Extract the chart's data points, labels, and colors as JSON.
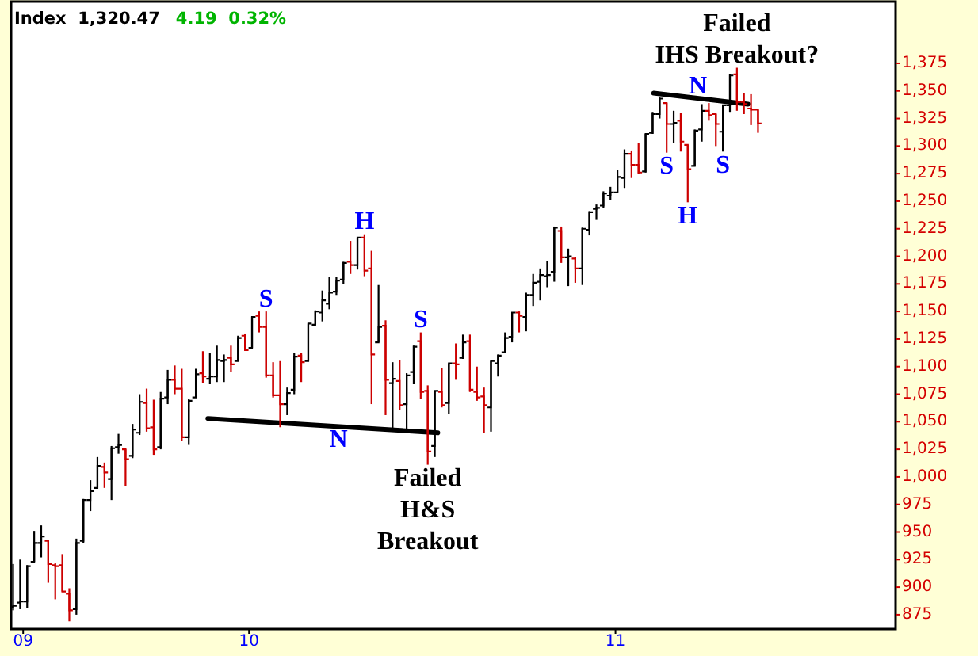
{
  "chart_data": {
    "type": "candlestick",
    "title": "Index  1,320.47",
    "subtitle": "4.19  0.32%",
    "x": [
      "2009-05-11",
      "2009-05-18",
      "2009-05-25",
      "2009-06-01",
      "2009-06-08",
      "2009-06-15",
      "2009-06-22",
      "2009-06-29",
      "2009-07-06",
      "2009-07-13",
      "2009-07-20",
      "2009-07-27",
      "2009-08-03",
      "2009-08-10",
      "2009-08-17",
      "2009-08-24",
      "2009-08-31",
      "2009-09-07",
      "2009-09-14",
      "2009-09-21",
      "2009-09-28",
      "2009-10-05",
      "2009-10-12",
      "2009-10-19",
      "2009-10-26",
      "2009-11-02",
      "2009-11-09",
      "2009-11-16",
      "2009-11-23",
      "2009-11-30",
      "2009-12-07",
      "2009-12-14",
      "2009-12-21",
      "2009-12-28",
      "2010-01-04",
      "2010-01-11",
      "2010-01-18",
      "2010-01-25",
      "2010-02-01",
      "2010-02-08",
      "2010-02-15",
      "2010-02-22",
      "2010-03-01",
      "2010-03-08",
      "2010-03-15",
      "2010-03-22",
      "2010-03-29",
      "2010-04-05",
      "2010-04-12",
      "2010-04-19",
      "2010-04-26",
      "2010-05-03",
      "2010-05-10",
      "2010-05-17",
      "2010-05-24",
      "2010-05-31",
      "2010-06-07",
      "2010-06-14",
      "2010-06-21",
      "2010-06-28",
      "2010-07-05",
      "2010-07-12",
      "2010-07-19",
      "2010-07-26",
      "2010-08-02",
      "2010-08-09",
      "2010-08-16",
      "2010-08-23",
      "2010-08-30",
      "2010-09-06",
      "2010-09-13",
      "2010-09-20",
      "2010-09-27",
      "2010-10-04",
      "2010-10-11",
      "2010-10-18",
      "2010-10-25",
      "2010-11-01",
      "2010-11-08",
      "2010-11-15",
      "2010-11-22",
      "2010-11-29",
      "2010-12-06",
      "2010-12-13",
      "2010-12-20",
      "2010-12-27",
      "2011-01-03",
      "2011-01-10",
      "2011-01-17",
      "2011-01-24",
      "2011-01-31",
      "2011-02-07",
      "2011-02-14",
      "2011-02-21",
      "2011-02-28",
      "2011-03-07",
      "2011-03-14",
      "2011-03-21",
      "2011-03-28",
      "2011-04-04",
      "2011-04-11",
      "2011-04-18",
      "2011-04-25",
      "2011-05-02",
      "2011-05-09",
      "2011-05-16",
      "2011-05-23"
    ],
    "ohlc": [
      [
        882,
        921,
        879,
        883
      ],
      [
        886,
        925,
        880,
        887
      ],
      [
        887,
        920,
        881,
        919
      ],
      [
        923,
        951,
        923,
        940
      ],
      [
        940,
        956,
        927,
        946
      ],
      [
        942,
        942,
        904,
        921
      ],
      [
        920,
        922,
        889,
        919
      ],
      [
        920,
        930,
        896,
        896
      ],
      [
        894,
        899,
        869,
        879
      ],
      [
        880,
        944,
        875,
        940
      ],
      [
        942,
        980,
        940,
        979
      ],
      [
        979,
        997,
        969,
        987
      ],
      [
        990,
        1018,
        990,
        1010
      ],
      [
        1009,
        1013,
        990,
        1004
      ],
      [
        998,
        1028,
        979,
        1026
      ],
      [
        1027,
        1039,
        1021,
        1029
      ],
      [
        1025,
        1025,
        992,
        1016
      ],
      [
        1019,
        1048,
        1017,
        1043
      ],
      [
        1040,
        1075,
        1038,
        1068
      ],
      [
        1067,
        1080,
        1041,
        1044
      ],
      [
        1045,
        1070,
        1020,
        1025
      ],
      [
        1027,
        1077,
        1025,
        1071
      ],
      [
        1072,
        1097,
        1066,
        1088
      ],
      [
        1088,
        1101,
        1075,
        1080
      ],
      [
        1080,
        1098,
        1033,
        1036
      ],
      [
        1036,
        1071,
        1029,
        1069
      ],
      [
        1072,
        1098,
        1072,
        1093
      ],
      [
        1094,
        1114,
        1085,
        1091
      ],
      [
        1089,
        1112,
        1084,
        1091
      ],
      [
        1091,
        1119,
        1086,
        1106
      ],
      [
        1105,
        1111,
        1086,
        1106
      ],
      [
        1108,
        1119,
        1095,
        1102
      ],
      [
        1105,
        1128,
        1105,
        1126
      ],
      [
        1128,
        1130,
        1115,
        1115
      ],
      [
        1117,
        1145,
        1117,
        1145
      ],
      [
        1146,
        1150,
        1131,
        1136
      ],
      [
        1136,
        1150,
        1090,
        1092
      ],
      [
        1092,
        1104,
        1072,
        1074
      ],
      [
        1074,
        1105,
        1045,
        1066
      ],
      [
        1066,
        1081,
        1056,
        1076
      ],
      [
        1079,
        1112,
        1075,
        1109
      ],
      [
        1110,
        1112,
        1086,
        1104
      ],
      [
        1105,
        1139,
        1105,
        1139
      ],
      [
        1138,
        1151,
        1138,
        1150
      ],
      [
        1149,
        1169,
        1141,
        1160
      ],
      [
        1157,
        1181,
        1152,
        1167
      ],
      [
        1168,
        1181,
        1165,
        1178
      ],
      [
        1179,
        1195,
        1175,
        1194
      ],
      [
        1195,
        1214,
        1184,
        1192
      ],
      [
        1192,
        1217,
        1188,
        1217
      ],
      [
        1217,
        1220,
        1182,
        1187
      ],
      [
        1189,
        1205,
        1066,
        1111
      ],
      [
        1122,
        1174,
        1122,
        1136
      ],
      [
        1137,
        1142,
        1056,
        1088
      ],
      [
        1085,
        1104,
        1041,
        1089
      ],
      [
        1087,
        1106,
        1061,
        1065
      ],
      [
        1066,
        1094,
        1042,
        1092
      ],
      [
        1095,
        1119,
        1084,
        1118
      ],
      [
        1123,
        1131,
        1071,
        1077
      ],
      [
        1078,
        1083,
        1011,
        1023
      ],
      [
        1028,
        1078,
        1018,
        1078
      ],
      [
        1077,
        1099,
        1063,
        1065
      ],
      [
        1067,
        1103,
        1057,
        1103
      ],
      [
        1103,
        1121,
        1088,
        1102
      ],
      [
        1108,
        1129,
        1107,
        1122
      ],
      [
        1123,
        1129,
        1077,
        1079
      ],
      [
        1077,
        1100,
        1069,
        1072
      ],
      [
        1073,
        1081,
        1040,
        1065
      ],
      [
        1063,
        1105,
        1041,
        1105
      ],
      [
        1103,
        1111,
        1091,
        1110
      ],
      [
        1113,
        1131,
        1113,
        1126
      ],
      [
        1127,
        1149,
        1122,
        1149
      ],
      [
        1149,
        1150,
        1131,
        1146
      ],
      [
        1145,
        1167,
        1132,
        1165
      ],
      [
        1165,
        1184,
        1155,
        1176
      ],
      [
        1177,
        1189,
        1160,
        1183
      ],
      [
        1182,
        1196,
        1172,
        1183
      ],
      [
        1186,
        1227,
        1177,
        1226
      ],
      [
        1223,
        1227,
        1194,
        1199
      ],
      [
        1199,
        1207,
        1173,
        1200
      ],
      [
        1198,
        1199,
        1176,
        1189
      ],
      [
        1189,
        1226,
        1174,
        1225
      ],
      [
        1224,
        1241,
        1219,
        1240
      ],
      [
        1243,
        1247,
        1233,
        1244
      ],
      [
        1246,
        1259,
        1244,
        1257
      ],
      [
        1255,
        1263,
        1251,
        1258
      ],
      [
        1258,
        1278,
        1258,
        1272
      ],
      [
        1271,
        1297,
        1262,
        1293
      ],
      [
        1293,
        1296,
        1271,
        1283
      ],
      [
        1283,
        1303,
        1275,
        1276
      ],
      [
        1277,
        1311,
        1276,
        1311
      ],
      [
        1312,
        1331,
        1311,
        1329
      ],
      [
        1329,
        1344,
        1325,
        1343
      ],
      [
        1339,
        1339,
        1294,
        1320
      ],
      [
        1320,
        1332,
        1303,
        1321
      ],
      [
        1323,
        1330,
        1295,
        1304
      ],
      [
        1301,
        1301,
        1249,
        1279
      ],
      [
        1282,
        1315,
        1282,
        1314
      ],
      [
        1315,
        1338,
        1304,
        1332
      ],
      [
        1332,
        1339,
        1323,
        1328
      ],
      [
        1329,
        1329,
        1300,
        1320
      ],
      [
        1313,
        1337,
        1295,
        1337
      ],
      [
        1337,
        1365,
        1331,
        1364
      ],
      [
        1365,
        1371,
        1332,
        1340
      ],
      [
        1340,
        1348,
        1329,
        1338
      ],
      [
        1334,
        1347,
        1319,
        1333
      ],
      [
        1333,
        1333,
        1312,
        1320.47
      ]
    ],
    "colors": [
      "#000000",
      "#000000",
      "#000000",
      "#000000",
      "#000000",
      "#cc0000",
      "#cc0000",
      "#cc0000",
      "#cc0000",
      "#000000",
      "#000000",
      "#000000",
      "#000000",
      "#cc0000",
      "#000000",
      "#000000",
      "#cc0000",
      "#000000",
      "#000000",
      "#cc0000",
      "#cc0000",
      "#000000",
      "#000000",
      "#cc0000",
      "#cc0000",
      "#000000",
      "#000000",
      "#cc0000",
      "#000000",
      "#000000",
      "#000000",
      "#cc0000",
      "#000000",
      "#cc0000",
      "#000000",
      "#cc0000",
      "#cc0000",
      "#cc0000",
      "#cc0000",
      "#000000",
      "#000000",
      "#cc0000",
      "#000000",
      "#000000",
      "#000000",
      "#000000",
      "#000000",
      "#000000",
      "#cc0000",
      "#000000",
      "#cc0000",
      "#cc0000",
      "#000000",
      "#cc0000",
      "#000000",
      "#cc0000",
      "#000000",
      "#000000",
      "#cc0000",
      "#cc0000",
      "#000000",
      "#cc0000",
      "#000000",
      "#cc0000",
      "#000000",
      "#cc0000",
      "#cc0000",
      "#cc0000",
      "#000000",
      "#000000",
      "#000000",
      "#000000",
      "#cc0000",
      "#000000",
      "#000000",
      "#000000",
      "#000000",
      "#000000",
      "#cc0000",
      "#000000",
      "#cc0000",
      "#000000",
      "#000000",
      "#000000",
      "#000000",
      "#000000",
      "#000000",
      "#000000",
      "#cc0000",
      "#cc0000",
      "#000000",
      "#000000",
      "#000000",
      "#cc0000",
      "#000000",
      "#cc0000",
      "#cc0000",
      "#000000",
      "#000000",
      "#cc0000",
      "#cc0000",
      "#000000",
      "#000000",
      "#cc0000",
      "#cc0000",
      "#cc0000",
      "#cc0000"
    ],
    "series": [
      {
        "type": "line",
        "x": [
          "2009-11-21",
          "2010-07-08"
        ],
        "values": [
          1053,
          1040
        ],
        "color": "#000000"
      },
      {
        "type": "line",
        "x": [
          "2011-02-08",
          "2011-05-13"
        ],
        "values": [
          1348,
          1338
        ],
        "color": "#000000"
      }
    ],
    "xlim": [
      "2009-05-09",
      "2011-10-07"
    ],
    "xticks": [
      {
        "value": "2009-05-21",
        "label": "09"
      },
      {
        "value": "2010-01-01",
        "label": "10"
      },
      {
        "value": "2011-01-01",
        "label": "11"
      }
    ],
    "ylim": [
      862,
      1431
    ],
    "yticks": [
      875,
      900,
      925,
      950,
      975,
      {
        "value": 1000,
        "label": "1,000"
      },
      {
        "value": 1025,
        "label": "1,025"
      },
      {
        "value": 1050,
        "label": "1,050"
      },
      {
        "value": 1075,
        "label": "1,075"
      },
      {
        "value": 1100,
        "label": "1,100"
      },
      {
        "value": 1125,
        "label": "1,125"
      },
      {
        "value": 1150,
        "label": "1,150"
      },
      {
        "value": 1175,
        "label": "1,175"
      },
      {
        "value": 1200,
        "label": "1,200"
      },
      {
        "value": 1225,
        "label": "1,225"
      },
      {
        "value": 1250,
        "label": "1,250"
      },
      {
        "value": 1275,
        "label": "1,275"
      },
      {
        "value": 1300,
        "label": "1,300"
      },
      {
        "value": 1325,
        "label": "1,325"
      },
      {
        "value": 1350,
        "label": "1,350"
      },
      {
        "value": 1375,
        "label": "1,375"
      }
    ],
    "annotations": [
      {
        "text": "S",
        "x": "2010-01-18",
        "y": 1150
      },
      {
        "text": "H",
        "x": "2010-04-26",
        "y": 1220
      },
      {
        "text": "N",
        "x": "2010-03-31",
        "y": 1046
      },
      {
        "text": "S",
        "x": "2010-06-21",
        "y": 1131
      },
      {
        "text": "Failed\nH&S\nBreakout",
        "x": "2010-06-28",
        "y": 1011
      },
      {
        "text": "S",
        "x": "2011-02-21",
        "y": 1294
      },
      {
        "text": "N",
        "x": "2011-03-24",
        "y": 1343
      },
      {
        "text": "H",
        "x": "2011-03-14",
        "y": 1249
      },
      {
        "text": "S",
        "x": "2011-04-18",
        "y": 1295
      },
      {
        "text": "Failed\nIHS Breakout?",
        "x": "2011-05-02",
        "y": 1371
      }
    ]
  }
}
